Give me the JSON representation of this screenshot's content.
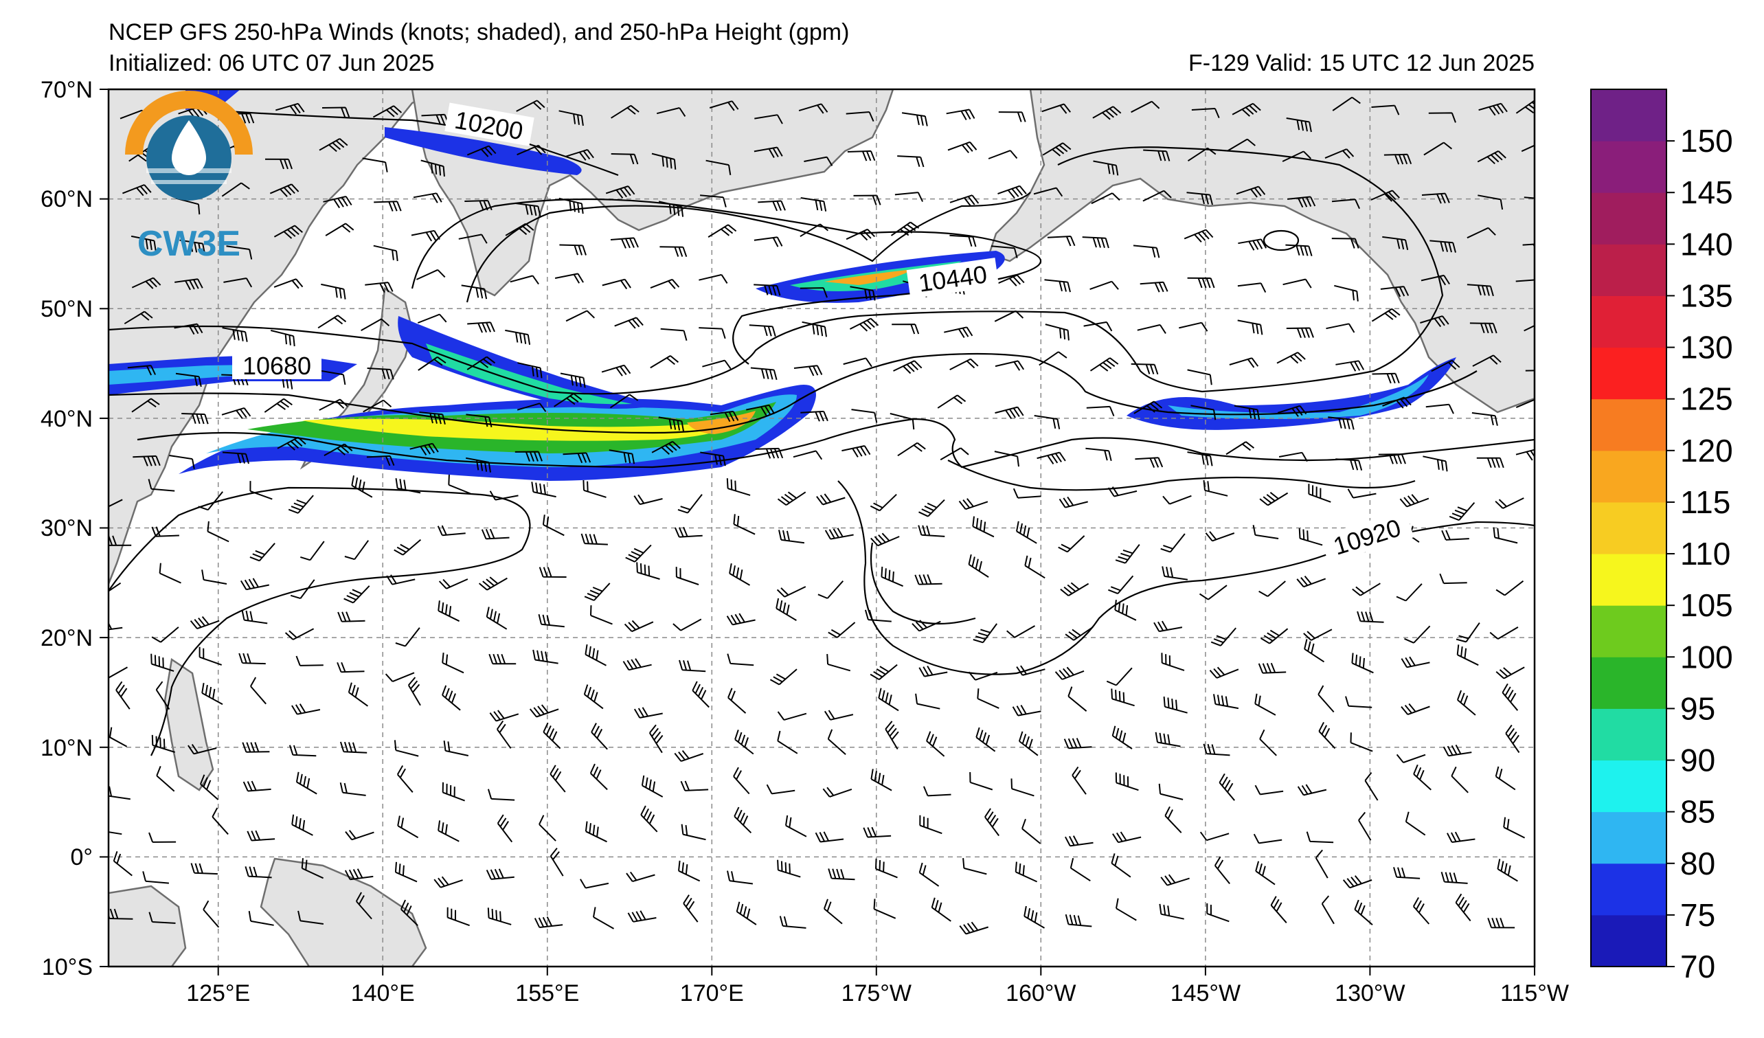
{
  "header": {
    "title": "NCEP GFS 250-hPa Winds (knots; shaded), and 250-hPa Height (gpm)",
    "initialized": "Initialized: 06 UTC 07 Jun 2025",
    "valid": "F-129  Valid: 15 UTC 12 Jun 2025"
  },
  "logo": {
    "text": "CW3E"
  },
  "map": {
    "lat_labels": [
      "70°N",
      "60°N",
      "50°N",
      "40°N",
      "30°N",
      "20°N",
      "10°N",
      "0°",
      "10°S"
    ],
    "lon_labels": [
      "125°E",
      "140°E",
      "155°E",
      "170°E",
      "175°W",
      "160°W",
      "145°W",
      "130°W",
      "115°W"
    ],
    "contour_labels": [
      "10200",
      "10440",
      "10680",
      "10920"
    ]
  },
  "colorbar": {
    "tick_labels": [
      "70",
      "75",
      "80",
      "85",
      "90",
      "95",
      "100",
      "105",
      "110",
      "115",
      "120",
      "125",
      "130",
      "135",
      "140",
      "145",
      "150"
    ],
    "colors": [
      "#1a1ab8",
      "#1c32e6",
      "#2fb6f2",
      "#1ef2ee",
      "#21dca3",
      "#2ab52a",
      "#6ecb1e",
      "#f6f61d",
      "#f7cc22",
      "#f9a71f",
      "#f77c21",
      "#fb2020",
      "#e02036",
      "#bb1f4a",
      "#a01d5e",
      "#8a1e7a",
      "#6f2187"
    ]
  },
  "chart_data": {
    "type": "map",
    "title": "NCEP GFS 250-hPa Winds (knots; shaded), and 250-hPa Height (gpm)",
    "shading_variable": "250-hPa wind speed (knots)",
    "contour_variable": "250-hPa height (gpm)",
    "colorbar_range": [
      70,
      155
    ],
    "lat_range": [
      "10°S",
      "70°N"
    ],
    "lon_range": [
      "115°E",
      "115°W"
    ],
    "contour_labels": [
      10200,
      10440,
      10680,
      10920
    ],
    "gridlines": true
  }
}
